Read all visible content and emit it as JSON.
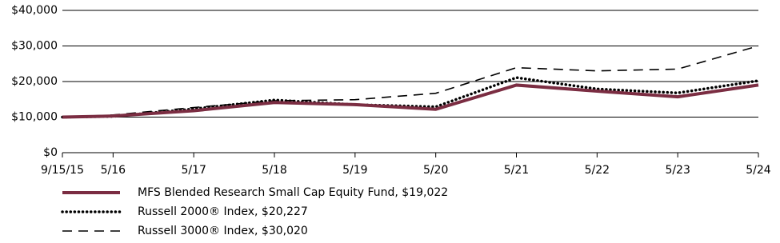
{
  "chart_data": {
    "type": "line",
    "x": [
      "9/15/15",
      "5/16",
      "5/17",
      "5/18",
      "5/19",
      "5/20",
      "5/21",
      "5/22",
      "5/23",
      "5/24"
    ],
    "series": [
      {
        "name": "MFS Blended Research Small Cap Equity Fund, $19,022",
        "color": "#7b2d42",
        "dash": "solid",
        "values": [
          10000,
          10300,
          11800,
          14100,
          13500,
          12200,
          19000,
          17300,
          15700,
          19022
        ]
      },
      {
        "name": "Russell 2000® Index, $20,227",
        "color": "#000000",
        "dash": "dotted",
        "values": [
          10000,
          10200,
          12300,
          14800,
          13500,
          12900,
          21100,
          17900,
          16800,
          20227
        ]
      },
      {
        "name": "Russell 3000® Index, $30,020",
        "color": "#000000",
        "dash": "dashed",
        "values": [
          10000,
          10600,
          12700,
          14600,
          14900,
          16700,
          23900,
          23000,
          23500,
          30020
        ]
      }
    ],
    "ylim": [
      0,
      40000
    ],
    "yticks": [
      {
        "value": 0,
        "label": "$0"
      },
      {
        "value": 10000,
        "label": "$10,000"
      },
      {
        "value": 20000,
        "label": "$20,000"
      },
      {
        "value": 30000,
        "label": "$30,000"
      },
      {
        "value": 40000,
        "label": "$40,000"
      }
    ],
    "grid": true,
    "legend": "bottom"
  }
}
